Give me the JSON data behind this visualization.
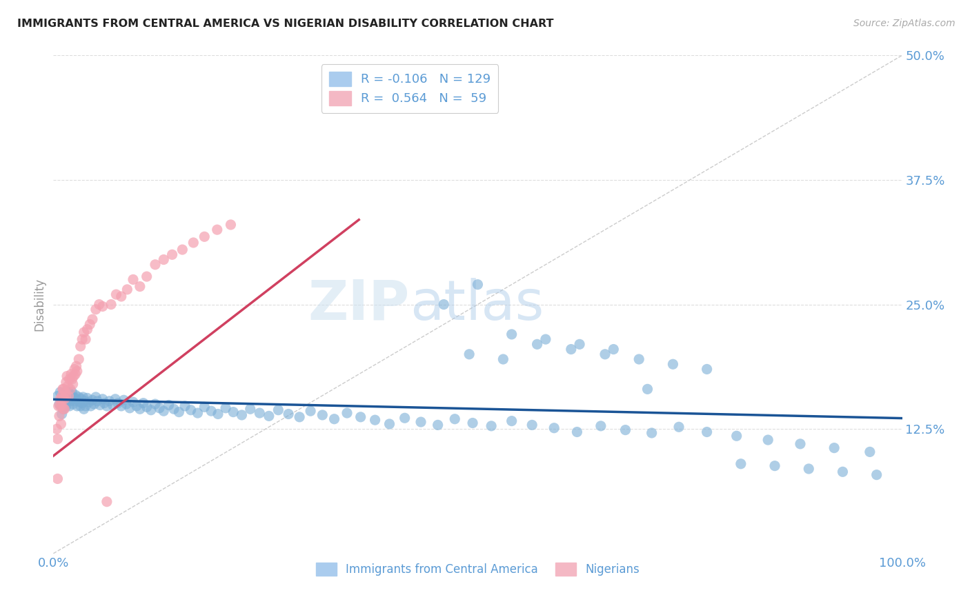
{
  "title": "IMMIGRANTS FROM CENTRAL AMERICA VS NIGERIAN DISABILITY CORRELATION CHART",
  "source": "Source: ZipAtlas.com",
  "ylabel": "Disability",
  "watermark": "ZIPatlas",
  "blue_R": -0.106,
  "blue_N": 129,
  "pink_R": 0.564,
  "pink_N": 59,
  "blue_color": "#7aaed6",
  "pink_color": "#f4a0b0",
  "blue_line_color": "#1a5496",
  "pink_line_color": "#d04060",
  "diagonal_color": "#cccccc",
  "bg_color": "#ffffff",
  "grid_color": "#dddddd",
  "axis_label_color": "#5b9bd5",
  "title_color": "#222222",
  "xlim": [
    0,
    1
  ],
  "ylim": [
    0,
    0.5
  ],
  "x_ticks": [
    0.0,
    1.0
  ],
  "x_tick_labels": [
    "0.0%",
    "100.0%"
  ],
  "y_ticks": [
    0.125,
    0.25,
    0.375,
    0.5
  ],
  "y_tick_labels": [
    "12.5%",
    "25.0%",
    "37.5%",
    "50.0%"
  ],
  "blue_scatter_x": [
    0.005,
    0.007,
    0.008,
    0.01,
    0.01,
    0.01,
    0.012,
    0.012,
    0.013,
    0.015,
    0.015,
    0.016,
    0.017,
    0.018,
    0.018,
    0.019,
    0.02,
    0.02,
    0.021,
    0.022,
    0.022,
    0.023,
    0.024,
    0.025,
    0.026,
    0.027,
    0.028,
    0.03,
    0.031,
    0.032,
    0.033,
    0.034,
    0.035,
    0.036,
    0.037,
    0.038,
    0.04,
    0.042,
    0.044,
    0.046,
    0.048,
    0.05,
    0.052,
    0.055,
    0.058,
    0.06,
    0.063,
    0.066,
    0.07,
    0.073,
    0.076,
    0.08,
    0.083,
    0.086,
    0.09,
    0.094,
    0.098,
    0.102,
    0.106,
    0.11,
    0.115,
    0.12,
    0.125,
    0.13,
    0.136,
    0.142,
    0.148,
    0.155,
    0.162,
    0.17,
    0.178,
    0.186,
    0.194,
    0.203,
    0.212,
    0.222,
    0.232,
    0.243,
    0.254,
    0.265,
    0.277,
    0.29,
    0.303,
    0.317,
    0.331,
    0.346,
    0.362,
    0.379,
    0.396,
    0.414,
    0.433,
    0.453,
    0.473,
    0.494,
    0.516,
    0.54,
    0.564,
    0.59,
    0.617,
    0.645,
    0.674,
    0.705,
    0.737,
    0.77,
    0.805,
    0.842,
    0.88,
    0.92,
    0.962,
    0.49,
    0.53,
    0.57,
    0.61,
    0.65,
    0.69,
    0.73,
    0.77,
    0.81,
    0.85,
    0.89,
    0.93,
    0.97,
    0.46,
    0.5,
    0.54,
    0.58,
    0.62,
    0.66,
    0.7
  ],
  "blue_scatter_y": [
    0.158,
    0.15,
    0.162,
    0.155,
    0.148,
    0.14,
    0.152,
    0.145,
    0.158,
    0.155,
    0.148,
    0.163,
    0.156,
    0.162,
    0.155,
    0.148,
    0.16,
    0.153,
    0.158,
    0.162,
    0.155,
    0.15,
    0.157,
    0.153,
    0.159,
    0.155,
    0.148,
    0.157,
    0.152,
    0.148,
    0.155,
    0.151,
    0.157,
    0.145,
    0.153,
    0.148,
    0.156,
    0.152,
    0.148,
    0.154,
    0.15,
    0.157,
    0.153,
    0.149,
    0.155,
    0.151,
    0.148,
    0.153,
    0.149,
    0.155,
    0.151,
    0.148,
    0.154,
    0.15,
    0.146,
    0.152,
    0.148,
    0.145,
    0.151,
    0.147,
    0.144,
    0.15,
    0.146,
    0.143,
    0.149,
    0.145,
    0.142,
    0.148,
    0.144,
    0.141,
    0.147,
    0.143,
    0.14,
    0.146,
    0.142,
    0.139,
    0.145,
    0.141,
    0.138,
    0.144,
    0.14,
    0.137,
    0.143,
    0.139,
    0.135,
    0.141,
    0.137,
    0.134,
    0.13,
    0.136,
    0.132,
    0.129,
    0.135,
    0.131,
    0.128,
    0.133,
    0.129,
    0.126,
    0.122,
    0.128,
    0.124,
    0.121,
    0.127,
    0.122,
    0.118,
    0.114,
    0.11,
    0.106,
    0.102,
    0.2,
    0.195,
    0.21,
    0.205,
    0.2,
    0.195,
    0.19,
    0.185,
    0.09,
    0.088,
    0.085,
    0.082,
    0.079,
    0.25,
    0.27,
    0.22,
    0.215,
    0.21,
    0.205,
    0.165
  ],
  "pink_scatter_x": [
    0.004,
    0.005,
    0.005,
    0.006,
    0.007,
    0.008,
    0.008,
    0.009,
    0.01,
    0.01,
    0.011,
    0.011,
    0.012,
    0.012,
    0.013,
    0.013,
    0.014,
    0.015,
    0.015,
    0.016,
    0.017,
    0.018,
    0.019,
    0.02,
    0.021,
    0.022,
    0.023,
    0.024,
    0.025,
    0.026,
    0.027,
    0.028,
    0.03,
    0.032,
    0.034,
    0.036,
    0.038,
    0.04,
    0.043,
    0.046,
    0.05,
    0.054,
    0.058,
    0.063,
    0.068,
    0.074,
    0.08,
    0.087,
    0.094,
    0.102,
    0.11,
    0.12,
    0.13,
    0.14,
    0.152,
    0.165,
    0.178,
    0.193,
    0.209
  ],
  "pink_scatter_y": [
    0.125,
    0.115,
    0.075,
    0.148,
    0.138,
    0.155,
    0.148,
    0.13,
    0.158,
    0.148,
    0.165,
    0.155,
    0.145,
    0.165,
    0.155,
    0.145,
    0.162,
    0.172,
    0.158,
    0.178,
    0.168,
    0.158,
    0.175,
    0.165,
    0.18,
    0.175,
    0.17,
    0.178,
    0.185,
    0.18,
    0.188,
    0.183,
    0.195,
    0.208,
    0.215,
    0.222,
    0.215,
    0.225,
    0.23,
    0.235,
    0.245,
    0.25,
    0.248,
    0.052,
    0.25,
    0.26,
    0.258,
    0.265,
    0.275,
    0.268,
    0.278,
    0.29,
    0.295,
    0.3,
    0.305,
    0.312,
    0.318,
    0.325,
    0.33
  ],
  "legend_blue_label": "Immigrants from Central America",
  "legend_pink_label": "Nigerians",
  "pink_line_x_start": 0.0,
  "pink_line_x_end": 0.36,
  "pink_line_y_start": 0.098,
  "pink_line_y_end": 0.335
}
